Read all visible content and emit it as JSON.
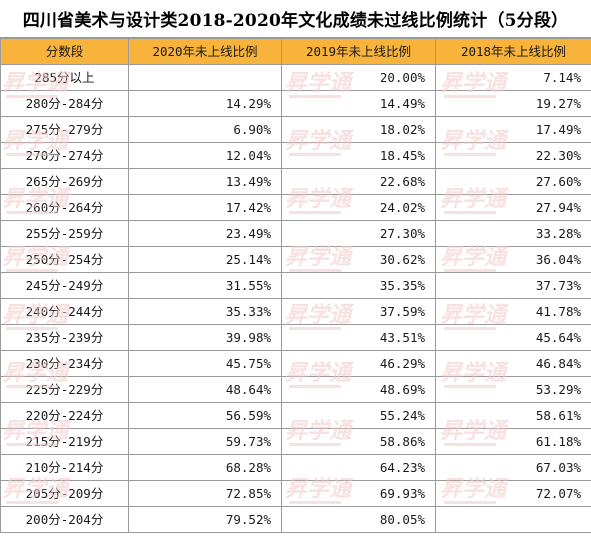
{
  "title": "四川省美术与设计类2018-2020年文化成绩未过线比例统计（5分段）",
  "columns": [
    "分数段",
    "2020年未上线比例",
    "2019年未上线比例",
    "2018年未上线比例"
  ],
  "rows": [
    {
      "range": "285分以上",
      "y2020": "",
      "y2019": "20.00%",
      "y2018": "7.14%"
    },
    {
      "range": "280分-284分",
      "y2020": "14.29%",
      "y2019": "14.49%",
      "y2018": "19.27%"
    },
    {
      "range": "275分-279分",
      "y2020": "6.90%",
      "y2019": "18.02%",
      "y2018": "17.49%"
    },
    {
      "range": "270分-274分",
      "y2020": "12.04%",
      "y2019": "18.45%",
      "y2018": "22.30%"
    },
    {
      "range": "265分-269分",
      "y2020": "13.49%",
      "y2019": "22.68%",
      "y2018": "27.60%"
    },
    {
      "range": "260分-264分",
      "y2020": "17.42%",
      "y2019": "24.02%",
      "y2018": "27.94%"
    },
    {
      "range": "255分-259分",
      "y2020": "23.49%",
      "y2019": "27.30%",
      "y2018": "33.28%"
    },
    {
      "range": "250分-254分",
      "y2020": "25.14%",
      "y2019": "30.62%",
      "y2018": "36.04%"
    },
    {
      "range": "245分-249分",
      "y2020": "31.55%",
      "y2019": "35.35%",
      "y2018": "37.73%"
    },
    {
      "range": "240分-244分",
      "y2020": "35.33%",
      "y2019": "37.59%",
      "y2018": "41.78%"
    },
    {
      "range": "235分-239分",
      "y2020": "39.98%",
      "y2019": "43.51%",
      "y2018": "45.64%"
    },
    {
      "range": "230分-234分",
      "y2020": "45.75%",
      "y2019": "46.29%",
      "y2018": "46.84%"
    },
    {
      "range": "225分-229分",
      "y2020": "48.64%",
      "y2019": "48.69%",
      "y2018": "53.29%"
    },
    {
      "range": "220分-224分",
      "y2020": "56.59%",
      "y2019": "55.24%",
      "y2018": "58.61%"
    },
    {
      "range": "215分-219分",
      "y2020": "59.73%",
      "y2019": "58.86%",
      "y2018": "61.18%"
    },
    {
      "range": "210分-214分",
      "y2020": "68.28%",
      "y2019": "64.23%",
      "y2018": "67.03%"
    },
    {
      "range": "205分-209分",
      "y2020": "72.85%",
      "y2019": "69.93%",
      "y2018": "72.07%"
    },
    {
      "range": "200分-204分",
      "y2020": "79.52%",
      "y2019": "80.05%",
      "y2018": ""
    }
  ],
  "watermark": {
    "text": "昇学通",
    "color": "#f2c9c9"
  }
}
